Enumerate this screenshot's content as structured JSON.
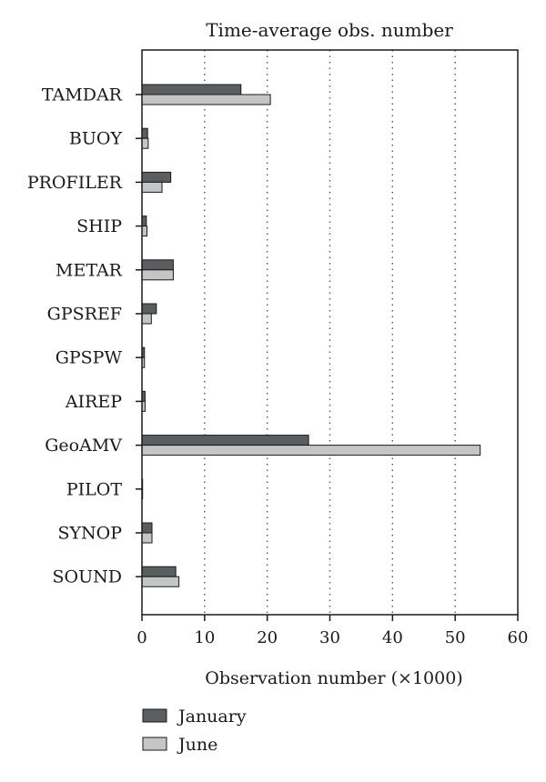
{
  "chart_data": {
    "type": "bar",
    "orientation": "horizontal",
    "title": "Time-average obs. number",
    "xlabel": "Observation number (×1000)",
    "ylabel": "",
    "xlim": [
      0,
      60
    ],
    "xticks": [
      0,
      10,
      20,
      30,
      40,
      50,
      60
    ],
    "grid": "vertical dotted",
    "legend_position": "bottom-left",
    "categories": [
      "TAMDAR",
      "BUOY",
      "PROFILER",
      "SHIP",
      "METAR",
      "GPSREF",
      "GPSPW",
      "AIREP",
      "GeoAMV",
      "PILOT",
      "SYNOP",
      "SOUND"
    ],
    "series": [
      {
        "name": "January",
        "color": "#5a5e61",
        "values": [
          15.8,
          0.9,
          4.6,
          0.7,
          5.0,
          2.3,
          0.4,
          0.5,
          26.6,
          0.1,
          1.6,
          5.4
        ]
      },
      {
        "name": "June",
        "color": "#c4c6c5",
        "values": [
          20.5,
          1.0,
          3.2,
          0.8,
          5.0,
          1.5,
          0.4,
          0.5,
          54.0,
          0.1,
          1.6,
          5.9
        ]
      }
    ]
  }
}
